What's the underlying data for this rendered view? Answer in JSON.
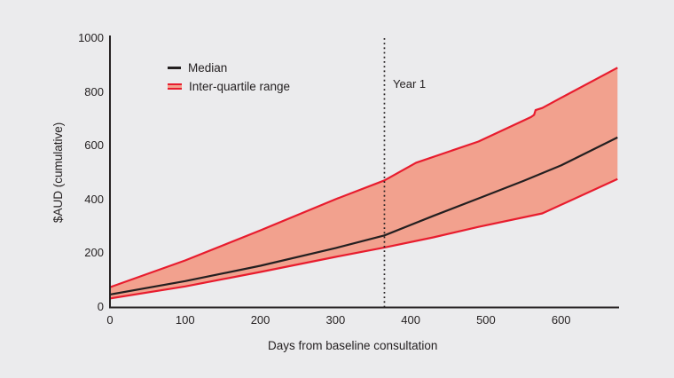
{
  "colors": {
    "background": "#ebebed",
    "band_fill": "#f2a18e",
    "quartile_line": "#e81c2e",
    "median_line": "#231f20",
    "axis_line": "#262223",
    "text": "#231f20"
  },
  "legend": {
    "median_label": "Median",
    "iqr_label": "Inter-quartile range"
  },
  "annotation": {
    "label": "Year 1",
    "x_days": 365
  },
  "chart_data": {
    "type": "line",
    "title": "",
    "xlabel": "Days from baseline consultation",
    "ylabel": "$AUD (cumulative)",
    "xlim": [
      0,
      677
    ],
    "ylim": [
      0,
      1000
    ],
    "x_ticks": [
      0,
      100,
      200,
      300,
      400,
      500,
      600
    ],
    "y_ticks": [
      0,
      200,
      400,
      600,
      800,
      1000
    ],
    "grid": false,
    "legend_position": "top-left-inside",
    "vline": {
      "x": 365,
      "label": "Year 1",
      "style": "dotted",
      "color": "#231f20"
    },
    "band": {
      "name": "Inter-quartile range",
      "fill": "#f2a18e",
      "upper_series": "Upper quartile (Q3)",
      "lower_series": "Lower quartile (Q1)"
    },
    "series": [
      {
        "name": "Median",
        "color": "#231f20",
        "points": [
          [
            0,
            45
          ],
          [
            100,
            95
          ],
          [
            200,
            152
          ],
          [
            300,
            218
          ],
          [
            365,
            265
          ],
          [
            430,
            338
          ],
          [
            494,
            407
          ],
          [
            550,
            468
          ],
          [
            600,
            526
          ],
          [
            675,
            630
          ]
        ]
      },
      {
        "name": "Upper quartile (Q3)",
        "color": "#e81c2e",
        "points": [
          [
            0,
            72
          ],
          [
            100,
            172
          ],
          [
            200,
            284
          ],
          [
            300,
            400
          ],
          [
            365,
            470
          ],
          [
            407,
            536
          ],
          [
            490,
            615
          ],
          [
            560,
            706
          ],
          [
            564,
            714
          ],
          [
            566,
            732
          ],
          [
            575,
            740
          ],
          [
            600,
            778
          ],
          [
            675,
            890
          ]
        ]
      },
      {
        "name": "Lower quartile (Q1)",
        "color": "#e81c2e",
        "points": [
          [
            0,
            30
          ],
          [
            100,
            75
          ],
          [
            200,
            129
          ],
          [
            300,
            185
          ],
          [
            365,
            220
          ],
          [
            430,
            258
          ],
          [
            490,
            297
          ],
          [
            575,
            347
          ],
          [
            675,
            475
          ]
        ]
      }
    ]
  }
}
